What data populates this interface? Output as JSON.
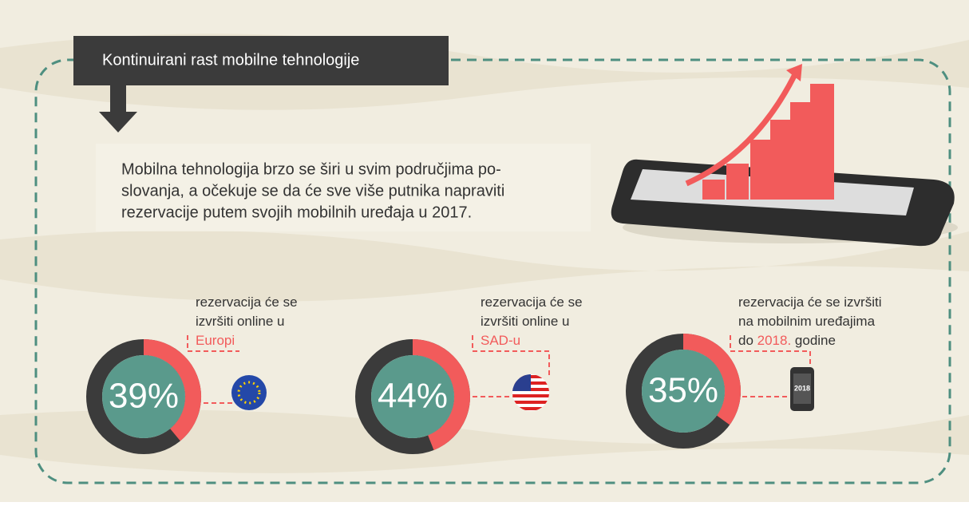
{
  "title": "Kontinuirani rast mobilne tehnologije",
  "intro": [
    "Mobilna tehnologija brzo se širi u svim područjima po-",
    "slovanja, a očekuje se da će sve više putnika napraviti",
    "rezervacije putem svojih mobilnih uređaja u 2017."
  ],
  "stats": [
    {
      "value": 39,
      "value_label": "39%",
      "caption": [
        [
          {
            "text": "rezervacija će se",
            "highlight": false
          }
        ],
        [
          {
            "text": "izvršiti online u",
            "highlight": false
          }
        ],
        [
          {
            "text": "Europi",
            "highlight": true
          }
        ]
      ]
    },
    {
      "value": 44,
      "value_label": "44%",
      "caption": [
        [
          {
            "text": "rezervacija će se",
            "highlight": false
          }
        ],
        [
          {
            "text": "izvršiti online u",
            "highlight": false
          }
        ],
        [
          {
            "text": "SAD-u",
            "highlight": true
          }
        ]
      ]
    },
    {
      "value": 35,
      "value_label": "35%",
      "icon_text": "2018",
      "caption": [
        [
          {
            "text": "rezervacija će se izvršiti",
            "highlight": false
          }
        ],
        [
          {
            "text": "na mobilnim uređajima",
            "highlight": false
          }
        ],
        [
          {
            "text": "do ",
            "highlight": false
          },
          {
            "text": "2018.",
            "highlight": true
          },
          {
            "text": " godine",
            "highlight": false
          }
        ]
      ]
    }
  ]
}
